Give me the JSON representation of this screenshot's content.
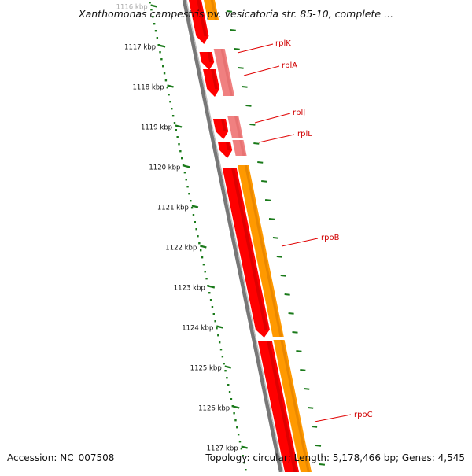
{
  "title": "Xanthomonas campestris pv. vesicatoria str. 85-10, complete ...",
  "accession": "Accession: NC_007508",
  "summary": "Topology: circular; Length: 5,178,466 bp; Genes: 4,545",
  "ruler": {
    "unit": "kbp",
    "ticks": [
      1116,
      1117,
      1118,
      1119,
      1120,
      1121,
      1122,
      1123,
      1124,
      1125,
      1126,
      1127
    ],
    "tick_color": "#1a7a1a"
  },
  "genes": [
    {
      "name": "rplK"
    },
    {
      "name": "rplA"
    },
    {
      "name": "rplJ"
    },
    {
      "name": "rplL"
    },
    {
      "name": "rpoB"
    },
    {
      "name": "rpoC"
    }
  ],
  "colors": {
    "backbone": "#777777",
    "cds_red": "#ff0000",
    "cds_red_dark": "#c40000",
    "cds_pink": "#f08080",
    "rna_orange": "#ff9900",
    "rna_orange_dark": "#d97a00",
    "misc_pink": "#ffb6c1",
    "misc_green": "#ccff66",
    "label_line": "#e00000",
    "label_text": "#d00000"
  }
}
